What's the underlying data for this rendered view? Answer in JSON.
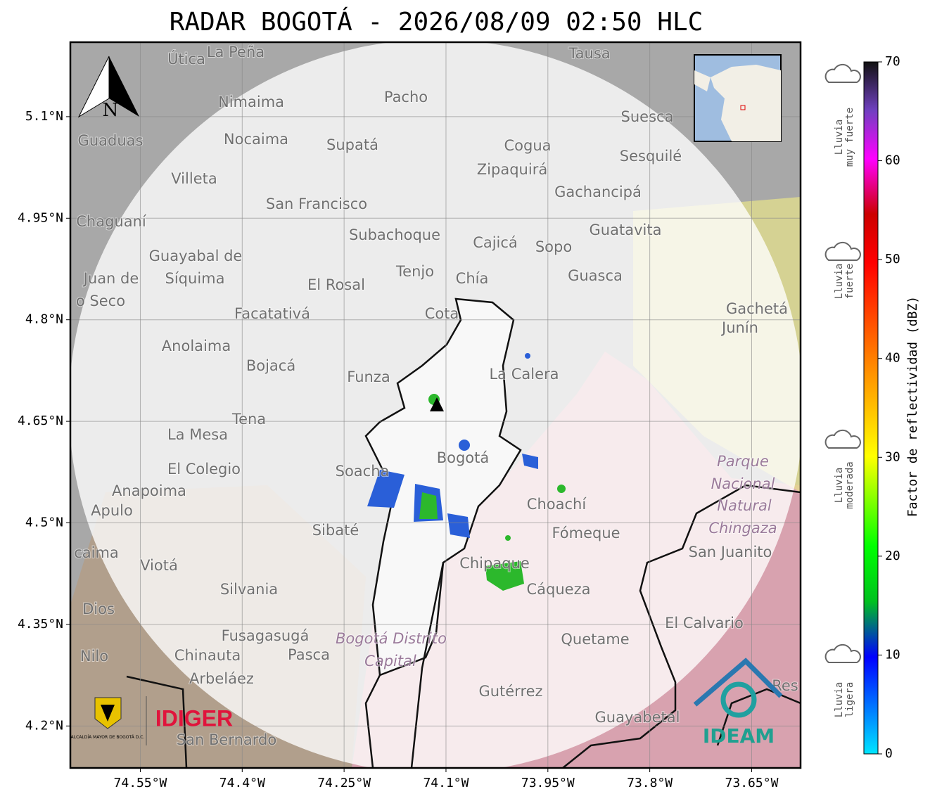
{
  "title": "RADAR BOGOTÁ - 2026/08/09 02:50 HLC",
  "map": {
    "xlim": [
      -74.653,
      -73.578
    ],
    "ylim": [
      4.138,
      5.21
    ],
    "xticks": [
      {
        "value": -74.55,
        "label": "74.55°W"
      },
      {
        "value": -74.4,
        "label": "74.4°W"
      },
      {
        "value": -74.25,
        "label": "74.25°W"
      },
      {
        "value": -74.1,
        "label": "74.1°W"
      },
      {
        "value": -73.95,
        "label": "73.95°W"
      },
      {
        "value": -73.8,
        "label": "73.8°W"
      },
      {
        "value": -73.65,
        "label": "73.65°W"
      }
    ],
    "yticks": [
      {
        "value": 5.1,
        "label": "5.1°N"
      },
      {
        "value": 4.95,
        "label": "4.95°N"
      },
      {
        "value": 4.8,
        "label": "4.8°N"
      },
      {
        "value": 4.65,
        "label": "4.65°N"
      },
      {
        "value": 4.5,
        "label": "4.5°N"
      },
      {
        "value": 4.35,
        "label": "4.35°N"
      },
      {
        "value": 4.2,
        "label": "4.2°N"
      }
    ],
    "north": "N",
    "places": [
      "Útica",
      "La Peña",
      "Tausa",
      "Pacho",
      "Nimaima",
      "Guaduas",
      "Nocaima",
      "Supatá",
      "Cogua",
      "Suesca",
      "Sesquilé",
      "Villeta",
      "Zipaquirá",
      "Gachancipá",
      "San Francisco",
      "Chaguaní",
      "Subachoque",
      "Cajicá",
      "Sopo",
      "Guatavita",
      "Guayabal de",
      "Síquima",
      "Juan de",
      "o Seco",
      "Tenjo",
      "El Rosal",
      "Chía",
      "Guasca",
      "Facatativá",
      "Cota",
      "Gachetá",
      "Junín",
      "Anolaima",
      "Bojacá",
      "Funza",
      "La Calera",
      "Tena",
      "La Mesa",
      "El Colegio",
      "Soacha",
      "Bogotá",
      "Parque",
      "Nacional",
      "Natural",
      "Chingaza",
      "Anapoima",
      "Apulo",
      "Choachí",
      "Sibaté",
      "Fómeque",
      "San Juanito",
      "caima",
      "Viotá",
      "Chipaque",
      "Silvania",
      "Cáqueza",
      "Dios",
      "El Calvario",
      "Fusagasugá",
      "Bogotá Distrito",
      "Capital",
      "Quetame",
      "Nilo",
      "Chinauta",
      "Pasca",
      "Arbeláez",
      "Gutérrez",
      "Res",
      "Guayabetal",
      "San Bernardo"
    ]
  },
  "logos": {
    "alcaldia": "ALCALDÍA MAYOR DE BOGOTÁ D.C.",
    "idiger": "IDIGER",
    "ideam": "IDEAM"
  },
  "colorbar": {
    "label": "Factor de reflectividad (dBZ)",
    "lim": [
      0,
      70
    ],
    "ticks": [
      0,
      10,
      20,
      30,
      40,
      50,
      60,
      70
    ]
  },
  "rain_levels": [
    [
      "Lluvia",
      "muy fuerte"
    ],
    [
      "Lluvia",
      "fuerte"
    ],
    [
      "Lluvia",
      "moderada"
    ],
    [
      "Lluvia",
      "ligera"
    ]
  ]
}
